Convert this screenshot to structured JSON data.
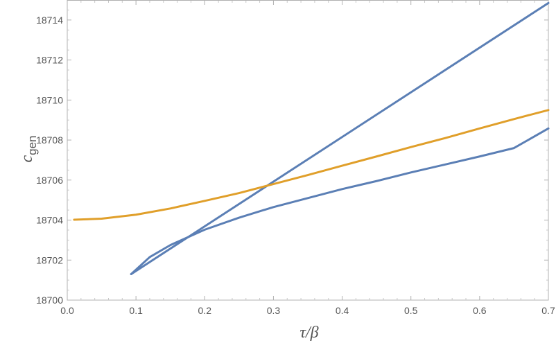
{
  "chart_data": {
    "type": "line",
    "title": "",
    "xlabel": "τ/β",
    "ylabel_main": "c",
    "ylabel_sub": "gen",
    "xlim": [
      0,
      0.7
    ],
    "ylim": [
      18700,
      18715
    ],
    "x_ticks": [
      "0.0",
      "0.1",
      "0.2",
      "0.3",
      "0.4",
      "0.5",
      "0.6",
      "0.7"
    ],
    "y_ticks": [
      "18700",
      "18702",
      "18704",
      "18706",
      "18708",
      "18710",
      "18712",
      "18714"
    ],
    "grid": false,
    "series": [
      {
        "color": "#5b7fb5",
        "points": [
          [
            0.093,
            18701.3
          ],
          [
            0.7,
            18714.85
          ]
        ]
      },
      {
        "color": "#5b7fb5",
        "points": [
          [
            0.093,
            18701.3
          ],
          [
            0.12,
            18702.15
          ],
          [
            0.15,
            18702.75
          ],
          [
            0.2,
            18703.52
          ],
          [
            0.25,
            18704.12
          ],
          [
            0.3,
            18704.65
          ],
          [
            0.35,
            18705.1
          ],
          [
            0.4,
            18705.55
          ],
          [
            0.45,
            18705.95
          ],
          [
            0.5,
            18706.38
          ],
          [
            0.55,
            18706.78
          ],
          [
            0.6,
            18707.18
          ],
          [
            0.65,
            18707.6
          ],
          [
            0.7,
            18708.58
          ]
        ]
      },
      {
        "color": "#e09f2a",
        "points": [
          [
            0.01,
            18704.02
          ],
          [
            0.05,
            18704.07
          ],
          [
            0.1,
            18704.27
          ],
          [
            0.15,
            18704.58
          ],
          [
            0.2,
            18704.96
          ],
          [
            0.25,
            18705.35
          ],
          [
            0.3,
            18705.8
          ],
          [
            0.35,
            18706.25
          ],
          [
            0.4,
            18706.72
          ],
          [
            0.45,
            18707.18
          ],
          [
            0.5,
            18707.65
          ],
          [
            0.55,
            18708.1
          ],
          [
            0.6,
            18708.58
          ],
          [
            0.65,
            18709.05
          ],
          [
            0.7,
            18709.5
          ]
        ]
      }
    ]
  }
}
